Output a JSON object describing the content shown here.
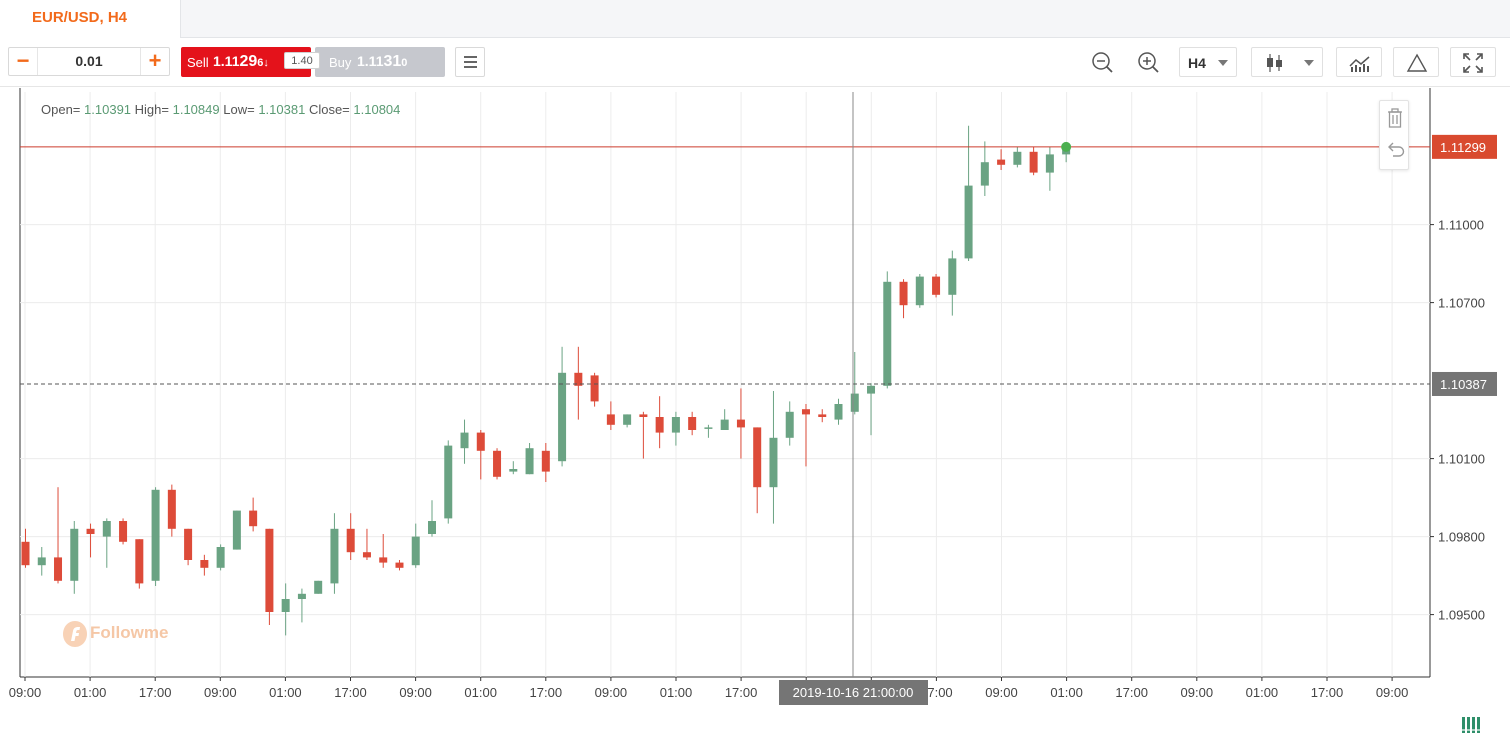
{
  "tab": {
    "title": "EUR/USD, H4"
  },
  "order": {
    "quantity": "0.01",
    "sell_label": "Sell",
    "sell_price_main": "1.11",
    "sell_price_big": "29",
    "sell_price_small": "6",
    "sell_arrow": "↓",
    "spread": "1.40",
    "buy_label": "Buy",
    "buy_price_main": "1.11",
    "buy_price_big": "31",
    "buy_price_small": "0"
  },
  "toolbar": {
    "timeframe": "H4",
    "icons": [
      "zoom-out-icon",
      "zoom-in-icon",
      "candlestick-icon",
      "indicators-icon",
      "drawing-triangle-icon",
      "fullscreen-icon"
    ]
  },
  "ohlc": {
    "open_label": "Open=",
    "open": "1.10391",
    "high_label": "High=",
    "high": "1.10849",
    "low_label": "Low=",
    "low": "1.10381",
    "close_label": "Close=",
    "close": "1.10804"
  },
  "watermark": "Followme",
  "chart_data": {
    "type": "candlestick",
    "symbol": "EUR/USD",
    "timeframe": "H4",
    "ylim": [
      1.0926,
      1.1151
    ],
    "y_ticks": [
      1.095,
      1.098,
      1.101,
      1.107,
      1.11
    ],
    "y_tick_labels": [
      "1.09500",
      "1.09800",
      "1.10100",
      "1.10700",
      "1.11000"
    ],
    "x_tick_labels": [
      "09:00",
      "01:00",
      "17:00",
      "09:00",
      "01:00",
      "17:00",
      "09:00",
      "01:00",
      "17:00",
      "09:00",
      "01:00",
      "17:00",
      "09:00",
      "01:00",
      "17:00",
      "09:00",
      "01:00",
      "17:00",
      "09:00",
      "01:00",
      "17:00",
      "09:00"
    ],
    "current_price": 1.11299,
    "current_price_label": "1.11299",
    "crosshair_price": 1.10387,
    "crosshair_price_label": "1.10387",
    "crosshair_time_label": "2019-10-16 21:00:00",
    "colors": {
      "up": "#6aa383",
      "down": "#dd4b39",
      "current_line": "#cc3b2c",
      "crosshair_label_bg": "#757575"
    },
    "candles": [
      {
        "o": 1.0978,
        "h": 1.0983,
        "l": 1.0968,
        "c": 1.0969
      },
      {
        "o": 1.0969,
        "h": 1.0976,
        "l": 1.0965,
        "c": 1.0972
      },
      {
        "o": 1.0972,
        "h": 1.0999,
        "l": 1.0962,
        "c": 1.0963
      },
      {
        "o": 1.0963,
        "h": 1.0986,
        "l": 1.0958,
        "c": 1.0983
      },
      {
        "o": 1.0983,
        "h": 1.0985,
        "l": 1.0972,
        "c": 1.0981
      },
      {
        "o": 1.098,
        "h": 1.0987,
        "l": 1.0968,
        "c": 1.0986
      },
      {
        "o": 1.0986,
        "h": 1.0987,
        "l": 1.0977,
        "c": 1.0978
      },
      {
        "o": 1.0979,
        "h": 1.0979,
        "l": 1.096,
        "c": 1.0962
      },
      {
        "o": 1.0963,
        "h": 1.0999,
        "l": 1.0961,
        "c": 1.0998
      },
      {
        "o": 1.0998,
        "h": 1.1,
        "l": 1.098,
        "c": 1.0983
      },
      {
        "o": 1.0983,
        "h": 1.0983,
        "l": 1.0969,
        "c": 1.0971
      },
      {
        "o": 1.0971,
        "h": 1.0973,
        "l": 1.0965,
        "c": 1.0968
      },
      {
        "o": 1.0968,
        "h": 1.0977,
        "l": 1.0967,
        "c": 1.0976
      },
      {
        "o": 1.0975,
        "h": 1.099,
        "l": 1.0975,
        "c": 1.099
      },
      {
        "o": 1.099,
        "h": 1.0995,
        "l": 1.0982,
        "c": 1.0984
      },
      {
        "o": 1.0983,
        "h": 1.0983,
        "l": 1.0946,
        "c": 1.0951
      },
      {
        "o": 1.0951,
        "h": 1.0962,
        "l": 1.0942,
        "c": 1.0956
      },
      {
        "o": 1.0956,
        "h": 1.096,
        "l": 1.0947,
        "c": 1.0958
      },
      {
        "o": 1.0958,
        "h": 1.0963,
        "l": 1.0958,
        "c": 1.0963
      },
      {
        "o": 1.0962,
        "h": 1.0989,
        "l": 1.0958,
        "c": 1.0983
      },
      {
        "o": 1.0983,
        "h": 1.0989,
        "l": 1.0971,
        "c": 1.0974
      },
      {
        "o": 1.0974,
        "h": 1.0983,
        "l": 1.0971,
        "c": 1.0972
      },
      {
        "o": 1.0972,
        "h": 1.0981,
        "l": 1.0968,
        "c": 1.097
      },
      {
        "o": 1.097,
        "h": 1.0971,
        "l": 1.0967,
        "c": 1.0968
      },
      {
        "o": 1.0969,
        "h": 1.0985,
        "l": 1.0968,
        "c": 1.098
      },
      {
        "o": 1.0981,
        "h": 1.0994,
        "l": 1.098,
        "c": 1.0986
      },
      {
        "o": 1.0987,
        "h": 1.1017,
        "l": 1.0985,
        "c": 1.1015
      },
      {
        "o": 1.1014,
        "h": 1.1025,
        "l": 1.1008,
        "c": 1.102
      },
      {
        "o": 1.102,
        "h": 1.1021,
        "l": 1.1002,
        "c": 1.1013
      },
      {
        "o": 1.1013,
        "h": 1.1014,
        "l": 1.1002,
        "c": 1.1003
      },
      {
        "o": 1.1005,
        "h": 1.1009,
        "l": 1.1004,
        "c": 1.1006
      },
      {
        "o": 1.1004,
        "h": 1.1016,
        "l": 1.1004,
        "c": 1.1014
      },
      {
        "o": 1.1013,
        "h": 1.1016,
        "l": 1.1001,
        "c": 1.1005
      },
      {
        "o": 1.1009,
        "h": 1.1053,
        "l": 1.1007,
        "c": 1.1043
      },
      {
        "o": 1.1043,
        "h": 1.1053,
        "l": 1.1025,
        "c": 1.1038
      },
      {
        "o": 1.1042,
        "h": 1.1043,
        "l": 1.103,
        "c": 1.1032
      },
      {
        "o": 1.1027,
        "h": 1.1032,
        "l": 1.1021,
        "c": 1.1023
      },
      {
        "o": 1.1023,
        "h": 1.1027,
        "l": 1.1022,
        "c": 1.1027
      },
      {
        "o": 1.1027,
        "h": 1.1028,
        "l": 1.101,
        "c": 1.1026
      },
      {
        "o": 1.1026,
        "h": 1.1034,
        "l": 1.1014,
        "c": 1.102
      },
      {
        "o": 1.102,
        "h": 1.1028,
        "l": 1.1015,
        "c": 1.1026
      },
      {
        "o": 1.1026,
        "h": 1.1028,
        "l": 1.1019,
        "c": 1.1021
      },
      {
        "o": 1.1022,
        "h": 1.1023,
        "l": 1.1018,
        "c": 1.1022
      },
      {
        "o": 1.1021,
        "h": 1.1029,
        "l": 1.1021,
        "c": 1.1025
      },
      {
        "o": 1.1025,
        "h": 1.1037,
        "l": 1.101,
        "c": 1.1022
      },
      {
        "o": 1.1022,
        "h": 1.1022,
        "l": 1.0989,
        "c": 1.0999
      },
      {
        "o": 1.0999,
        "h": 1.1036,
        "l": 1.0985,
        "c": 1.1018
      },
      {
        "o": 1.1018,
        "h": 1.1032,
        "l": 1.1015,
        "c": 1.1028
      },
      {
        "o": 1.1029,
        "h": 1.1031,
        "l": 1.1007,
        "c": 1.1027
      },
      {
        "o": 1.1027,
        "h": 1.1029,
        "l": 1.1024,
        "c": 1.1026
      },
      {
        "o": 1.1025,
        "h": 1.1033,
        "l": 1.1023,
        "c": 1.1031
      },
      {
        "o": 1.1028,
        "h": 1.1051,
        "l": 1.1027,
        "c": 1.1035
      },
      {
        "o": 1.1035,
        "h": 1.1039,
        "l": 1.1019,
        "c": 1.1038
      },
      {
        "o": 1.1038,
        "h": 1.1082,
        "l": 1.1037,
        "c": 1.1078
      },
      {
        "o": 1.1078,
        "h": 1.1079,
        "l": 1.1064,
        "c": 1.1069
      },
      {
        "o": 1.1069,
        "h": 1.1081,
        "l": 1.1068,
        "c": 1.108
      },
      {
        "o": 1.108,
        "h": 1.1081,
        "l": 1.1072,
        "c": 1.1073
      },
      {
        "o": 1.1073,
        "h": 1.109,
        "l": 1.1065,
        "c": 1.1087
      },
      {
        "o": 1.1087,
        "h": 1.1138,
        "l": 1.1086,
        "c": 1.1115
      },
      {
        "o": 1.1115,
        "h": 1.1132,
        "l": 1.1111,
        "c": 1.1124
      },
      {
        "o": 1.1125,
        "h": 1.1129,
        "l": 1.1121,
        "c": 1.1123
      },
      {
        "o": 1.1123,
        "h": 1.113,
        "l": 1.1122,
        "c": 1.1128
      },
      {
        "o": 1.1128,
        "h": 1.113,
        "l": 1.1119,
        "c": 1.112
      },
      {
        "o": 1.112,
        "h": 1.113,
        "l": 1.1113,
        "c": 1.1127
      },
      {
        "o": 1.1127,
        "h": 1.113,
        "l": 1.1124,
        "c": 1.113
      }
    ]
  }
}
